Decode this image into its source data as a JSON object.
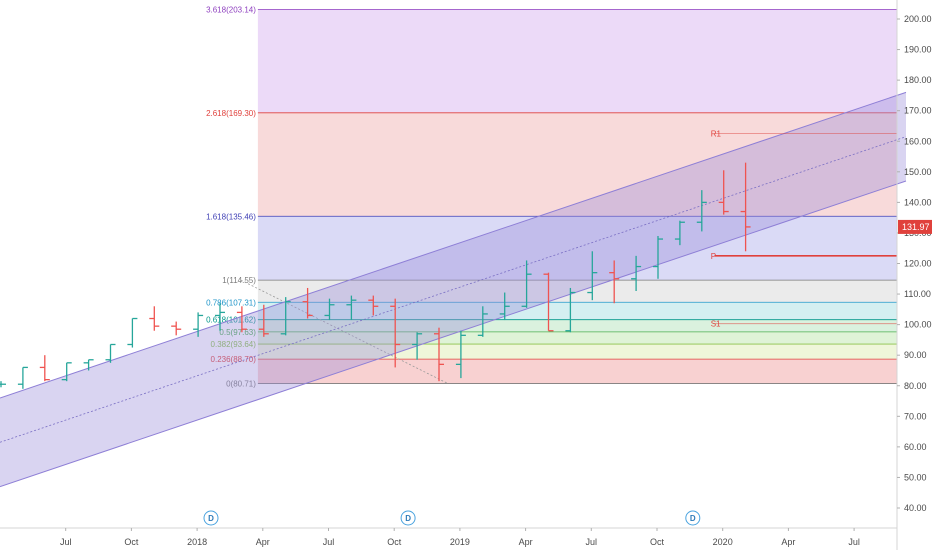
{
  "chart_data": {
    "type": "ohlc",
    "x_axis": {
      "start": "2017-04",
      "end": "2020-08"
    },
    "y_axis": {
      "range": [
        33,
        210
      ],
      "scale": "linear",
      "side": "right",
      "tick_labels": [
        "40.00",
        "50.00",
        "60.00",
        "70.00",
        "80.00",
        "90.00",
        "100.00",
        "110.00",
        "120.00",
        "130.00",
        "140.00",
        "150.00",
        "160.00",
        "170.00",
        "180.00",
        "190.00",
        "200.00"
      ]
    },
    "x_tick_labels": [
      {
        "label": "Jul",
        "date": "2017-07"
      },
      {
        "label": "Oct",
        "date": "2017-10"
      },
      {
        "label": "2018",
        "date": "2018-01"
      },
      {
        "label": "Apr",
        "date": "2018-04"
      },
      {
        "label": "Jul",
        "date": "2018-07"
      },
      {
        "label": "Oct",
        "date": "2018-10"
      },
      {
        "label": "2019",
        "date": "2019-01"
      },
      {
        "label": "Apr",
        "date": "2019-04"
      },
      {
        "label": "Jul",
        "date": "2019-07"
      },
      {
        "label": "Oct",
        "date": "2019-10"
      },
      {
        "label": "2020",
        "date": "2020-01"
      },
      {
        "label": "Apr",
        "date": "2020-04"
      },
      {
        "label": "Jul",
        "date": "2020-07"
      }
    ],
    "bars": [
      {
        "date": "2017-04",
        "o": 80.5,
        "h": 81.5,
        "l": 79.5,
        "c": 80.5
      },
      {
        "date": "2017-05",
        "o": 80.5,
        "h": 86,
        "l": 79,
        "c": 86
      },
      {
        "date": "2017-06",
        "o": 86,
        "h": 90,
        "l": 81.5,
        "c": 82
      },
      {
        "date": "2017-07",
        "o": 82,
        "h": 87.5,
        "l": 81.5,
        "c": 87.5
      },
      {
        "date": "2017-08",
        "o": 87.5,
        "h": 88.5,
        "l": 85,
        "c": 88.5
      },
      {
        "date": "2017-09",
        "o": 88.5,
        "h": 93.5,
        "l": 87.5,
        "c": 93.5
      },
      {
        "date": "2017-10",
        "o": 93.5,
        "h": 102,
        "l": 92.5,
        "c": 102
      },
      {
        "date": "2017-11",
        "o": 102,
        "h": 106,
        "l": 98,
        "c": 99.5
      },
      {
        "date": "2017-12",
        "o": 99.5,
        "h": 101,
        "l": 96.5,
        "c": 98.5
      },
      {
        "date": "2018-01",
        "o": 98.5,
        "h": 104,
        "l": 96,
        "c": 103
      },
      {
        "date": "2018-02",
        "o": 103,
        "h": 107,
        "l": 98,
        "c": 104
      },
      {
        "date": "2018-03",
        "o": 104,
        "h": 106,
        "l": 97.5,
        "c": 98.5
      },
      {
        "date": "2018-04",
        "o": 98.5,
        "h": 106.5,
        "l": 96,
        "c": 97
      },
      {
        "date": "2018-05",
        "o": 97,
        "h": 109,
        "l": 96.5,
        "c": 107.5
      },
      {
        "date": "2018-06",
        "o": 107.5,
        "h": 112,
        "l": 102,
        "c": 103
      },
      {
        "date": "2018-07",
        "o": 103,
        "h": 108.5,
        "l": 101.5,
        "c": 106.5
      },
      {
        "date": "2018-08",
        "o": 106.5,
        "h": 109.5,
        "l": 101.5,
        "c": 108
      },
      {
        "date": "2018-09",
        "o": 108,
        "h": 109.5,
        "l": 103,
        "c": 106
      },
      {
        "date": "2018-10",
        "o": 106,
        "h": 108.5,
        "l": 86,
        "c": 93.5
      },
      {
        "date": "2018-11",
        "o": 93.5,
        "h": 97.5,
        "l": 88.5,
        "c": 97
      },
      {
        "date": "2018-12",
        "o": 97,
        "h": 99,
        "l": 81.5,
        "c": 87
      },
      {
        "date": "2019-01",
        "o": 87,
        "h": 98,
        "l": 82.5,
        "c": 96.5
      },
      {
        "date": "2019-02",
        "o": 96.5,
        "h": 106,
        "l": 96,
        "c": 103.5
      },
      {
        "date": "2019-03",
        "o": 103.5,
        "h": 110.5,
        "l": 101.5,
        "c": 106
      },
      {
        "date": "2019-04",
        "o": 106,
        "h": 121,
        "l": 105.5,
        "c": 116.5
      },
      {
        "date": "2019-05",
        "o": 116.5,
        "h": 117,
        "l": 98,
        "c": 98
      },
      {
        "date": "2019-06",
        "o": 98,
        "h": 112,
        "l": 97.5,
        "c": 110.5
      },
      {
        "date": "2019-07",
        "o": 110.5,
        "h": 124,
        "l": 108,
        "c": 117
      },
      {
        "date": "2019-08",
        "o": 117,
        "h": 121,
        "l": 107,
        "c": 115
      },
      {
        "date": "2019-09",
        "o": 115,
        "h": 122.5,
        "l": 111,
        "c": 119
      },
      {
        "date": "2019-10",
        "o": 119,
        "h": 129,
        "l": 115,
        "c": 128
      },
      {
        "date": "2019-11",
        "o": 128,
        "h": 134,
        "l": 126,
        "c": 133.5
      },
      {
        "date": "2019-12",
        "o": 133.5,
        "h": 144,
        "l": 130.5,
        "c": 140
      },
      {
        "date": "2020-01",
        "o": 140,
        "h": 150.5,
        "l": 136,
        "c": 137
      },
      {
        "date": "2020-02",
        "o": 137,
        "h": 153,
        "l": 124,
        "c": 131.97
      }
    ],
    "fib_levels": [
      {
        "label": "0(80.71)",
        "value": 80.71,
        "color": "#7a7a7a",
        "fill": "#f7c9c9"
      },
      {
        "label": "0.236(88.70)",
        "value": 88.7,
        "color": "#e0413c",
        "fill": "#ecf5d3"
      },
      {
        "label": "0.382(93.64)",
        "value": 93.64,
        "color": "#8bc34a",
        "fill": "#d9f1d0"
      },
      {
        "label": "0.5(97.63)",
        "value": 97.63,
        "color": "#4caf50",
        "fill": "#d4efd8"
      },
      {
        "label": "0.618(101.62)",
        "value": 101.62,
        "color": "#009688",
        "fill": "#cdecef"
      },
      {
        "label": "0.786(107.31)",
        "value": 107.31,
        "color": "#2196c9",
        "fill": "#e8e8e8"
      },
      {
        "label": "1(114.55)",
        "value": 114.55,
        "color": "#7a7a7a",
        "fill": "#d4d4f5"
      },
      {
        "label": "1.618(135.46)",
        "value": 135.46,
        "color": "#3f3fb5",
        "fill": "#f7d3d3"
      },
      {
        "label": "2.618(169.30)",
        "value": 169.3,
        "color": "#e0413c",
        "fill": "#e9d3f7"
      },
      {
        "label": "3.618(203.14)",
        "value": 203.14,
        "color": "#8e3fbf",
        "fill": null
      }
    ],
    "fib_start": "2018-03",
    "fib_trend_start": {
      "date": "2018-03",
      "value": 114.55
    },
    "fib_trend_end": {
      "date": "2018-12",
      "value": 80.71
    },
    "channel": {
      "middle_start": {
        "date": "2017-04",
        "value": 61.5
      },
      "middle_end": {
        "date": "2020-08",
        "value": 157.5
      },
      "half_width": 14.5,
      "fill": "#9b8fd9",
      "line": "#8e7fd6"
    },
    "pivots": [
      {
        "label": "R1",
        "value": 162.5,
        "start": "2020-01",
        "end": "2020-08"
      },
      {
        "label": "P",
        "value": 122.5,
        "start": "2020-01",
        "end": "2020-08"
      },
      {
        "label": "S1",
        "value": 100.3,
        "start": "2020-01",
        "end": "2020-08"
      }
    ],
    "last_price": {
      "value": 131.97,
      "label": "131.97",
      "color": "#e0413c"
    },
    "dividend_markers": [
      {
        "label": "D",
        "date": "2018-02"
      },
      {
        "label": "D",
        "date": "2018-11"
      },
      {
        "label": "D",
        "date": "2019-12"
      }
    ],
    "colors": {
      "up": "#26a69a",
      "down": "#ef5350"
    }
  }
}
